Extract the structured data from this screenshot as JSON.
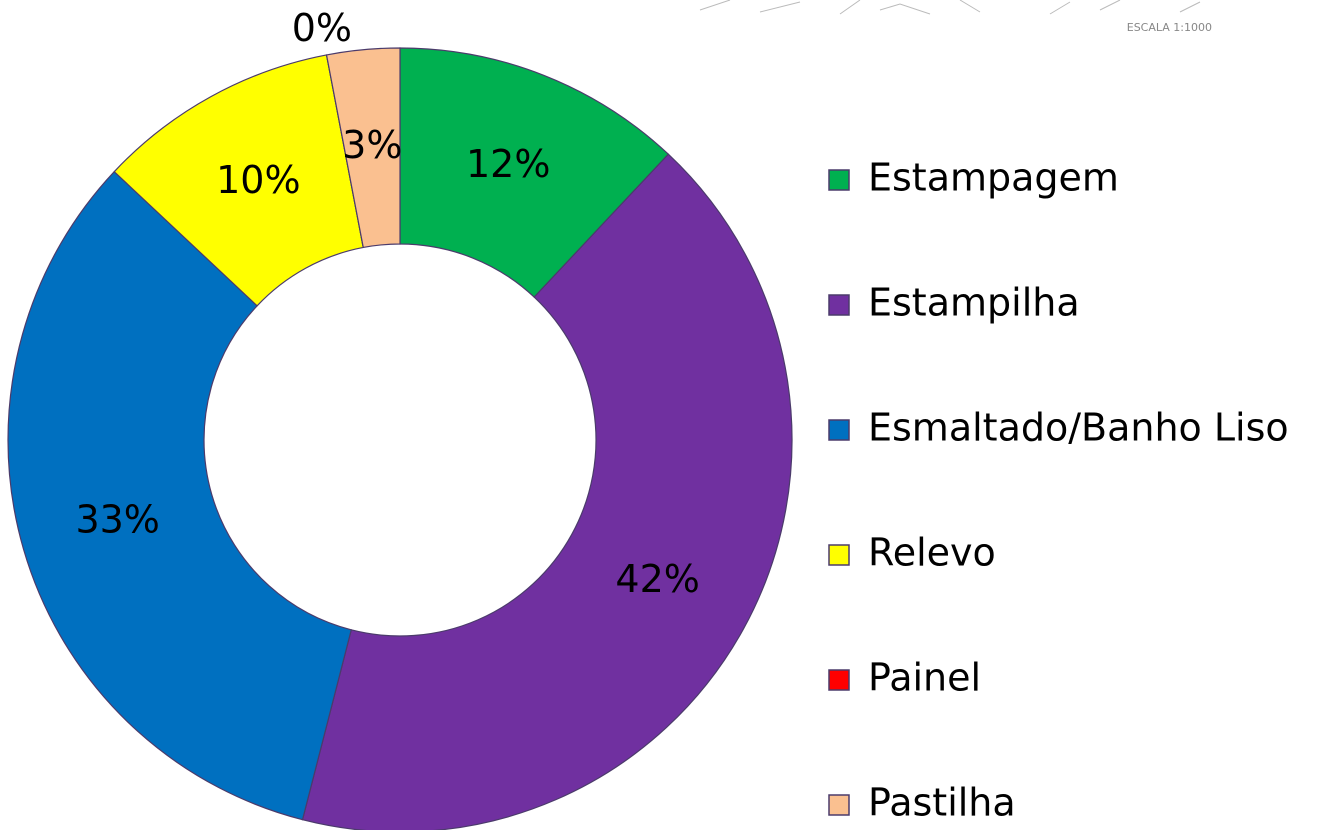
{
  "chart_data": {
    "type": "donut",
    "categories": [
      "Estampagem",
      "Estampilha",
      "Esmaltado/Banho Liso",
      "Relevo",
      "Painel",
      "Pastilha"
    ],
    "values": [
      12,
      42,
      33,
      10,
      0,
      3
    ],
    "value_labels": [
      "12%",
      "42%",
      "33%",
      "10%",
      "0%",
      "3%"
    ],
    "colors": [
      "#00b050",
      "#7030a0",
      "#0070c0",
      "#ffff00",
      "#ff0000",
      "#fac090"
    ],
    "legend": "right",
    "annotations": [
      "ESCALA 1:1000"
    ]
  }
}
